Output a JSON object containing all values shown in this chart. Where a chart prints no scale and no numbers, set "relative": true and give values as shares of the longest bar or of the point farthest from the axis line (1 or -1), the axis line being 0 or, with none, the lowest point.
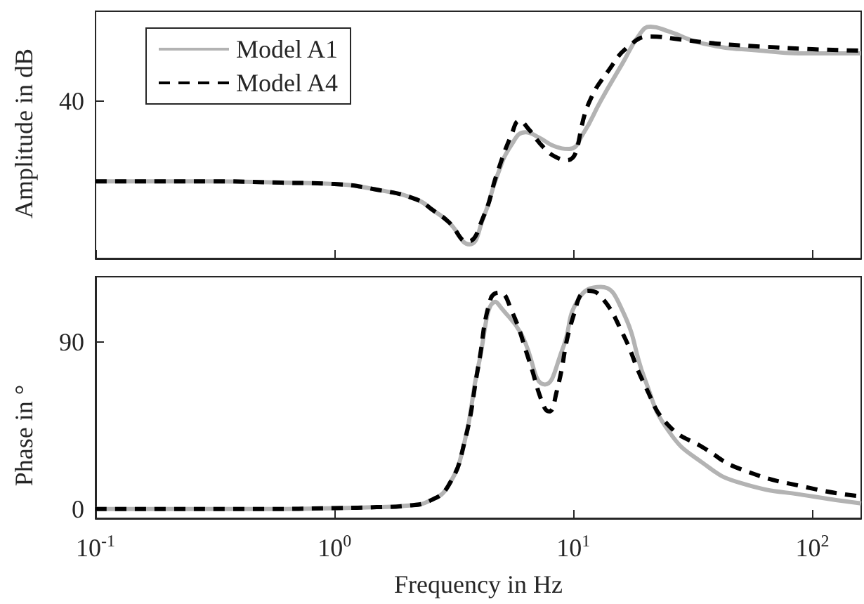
{
  "chart_data": [
    {
      "type": "line",
      "ylabel": "Amplitude in dB",
      "relative": true,
      "xlim": [
        0.1,
        160
      ],
      "log": "x",
      "tick_labels": false,
      "grid": false,
      "legend": "top left",
      "marker": "none",
      "xticks": [
        0.1,
        1,
        10,
        100
      ],
      "annotations": [
        "40"
      ],
      "series": [
        {
          "name": "Model A1",
          "color": "#b3b3b3",
          "line_style": "solid",
          "x": [
            0.1,
            0.3,
            0.6,
            1,
            1.5,
            2.2,
            2.6,
            3,
            3.67,
            4.2,
            4.8,
            5.5,
            6.3,
            7.2,
            8.3,
            9.6,
            11,
            13,
            16,
            19,
            21,
            25,
            35,
            60,
            100,
            160
          ],
          "values": [
            0.333,
            0.333,
            0.327,
            0.321,
            0.297,
            0.255,
            0.206,
            0.158,
            0.061,
            0.176,
            0.358,
            0.49,
            0.545,
            0.521,
            0.485,
            0.473,
            0.54,
            0.68,
            0.84,
            0.97,
            1,
            0.98,
            0.927,
            0.897,
            0.885,
            0.885
          ]
        },
        {
          "name": "Model A4",
          "color": "#000000",
          "line_style": "dashed",
          "x": [
            0.1,
            0.3,
            0.6,
            1,
            1.5,
            2.2,
            2.6,
            3,
            3.6,
            4.2,
            4.8,
            5.5,
            5.95,
            6.5,
            7.5,
            8.5,
            9.4,
            11.7,
            14,
            17,
            21,
            28,
            40,
            60,
            100,
            160
          ],
          "values": [
            0.333,
            0.333,
            0.327,
            0.321,
            0.297,
            0.255,
            0.206,
            0.158,
            0.073,
            0.18,
            0.37,
            0.533,
            0.594,
            0.558,
            0.479,
            0.436,
            0.424,
            0.68,
            0.81,
            0.915,
            0.958,
            0.945,
            0.927,
            0.915,
            0.903,
            0.897
          ]
        }
      ]
    },
    {
      "type": "line",
      "xlabel": "Frequency in Hz",
      "ylabel": "Phase in °",
      "xlim": [
        0.1,
        160
      ],
      "ylim": [
        -5,
        125
      ],
      "log": "x",
      "grid": false,
      "legend": false,
      "marker": "none",
      "xticks": [
        {
          "value": 0.1,
          "label": "10$^{-1}$"
        },
        {
          "value": 1,
          "label": "10$^{0}$"
        },
        {
          "value": 10,
          "label": "10$^{1}$"
        },
        {
          "value": 100,
          "label": "10$^{2}$"
        }
      ],
      "yticks": [
        0,
        90
      ],
      "series": [
        {
          "color": "#b3b3b3",
          "line_style": "solid",
          "x": [
            0.1,
            0.5,
            1,
            1.5,
            2,
            2.5,
            3,
            3.5,
            4,
            4.73,
            5,
            6,
            7.6,
            9,
            10.5,
            13,
            16,
            20,
            25,
            35,
            50,
            100,
            160
          ],
          "values": [
            0,
            0,
            0.5,
            1,
            1.8,
            4.4,
            12.7,
            36,
            77,
            111.5,
            108,
            95,
            67,
            86,
            113,
            119.5,
            107,
            69,
            42,
            24.5,
            14,
            6.8,
            3
          ]
        },
        {
          "color": "#000000",
          "line_style": "dashed",
          "x": [
            0.1,
            0.5,
            1,
            1.5,
            2,
            2.5,
            3,
            3.5,
            4,
            4.5,
            4.9,
            5.5,
            6.5,
            7.5,
            7.9,
            8.5,
            10,
            11.5,
            13,
            16,
            20,
            25,
            35,
            50,
            100,
            160
          ],
          "values": [
            0,
            0,
            0.5,
            1,
            1.8,
            4.4,
            12.7,
            36,
            77,
            113,
            116.5,
            107,
            80.5,
            55.5,
            52.5,
            63,
            104,
            117.4,
            114.5,
            95,
            66,
            45,
            33,
            21.5,
            11,
            6.8
          ]
        }
      ]
    }
  ]
}
